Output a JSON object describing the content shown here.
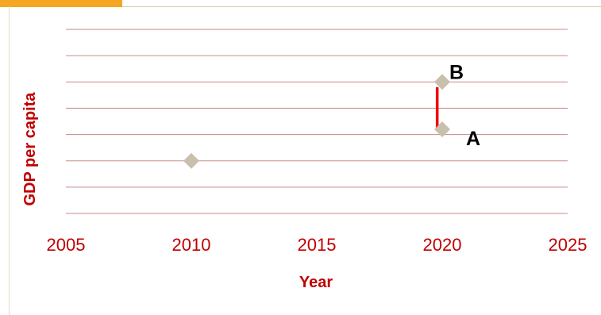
{
  "chart_data": {
    "type": "scatter",
    "title": "",
    "xlabel": "Year",
    "ylabel": "GDP per capita",
    "xlim": [
      2005,
      2025
    ],
    "x_ticks": [
      "2005",
      "2010",
      "2015",
      "2020",
      "2025"
    ],
    "ylim": [
      0,
      7
    ],
    "y_tick_labels_shown": false,
    "grid": "horizontal",
    "series": [
      {
        "points": [
          {
            "x": 2010,
            "y": 2,
            "label": ""
          },
          {
            "x": 2020,
            "y": 5,
            "label": "B"
          },
          {
            "x": 2020,
            "y": 3.2,
            "label": "A"
          }
        ]
      }
    ],
    "annotations": [
      {
        "type": "vertical-bar",
        "x": 2019.8,
        "y_from": 3.2,
        "y_to": 4.8
      }
    ],
    "colors": {
      "grid": "#c98a8a",
      "marker": "#c8c0ac",
      "axis_text": "#c00000",
      "highlight": "#ee0000",
      "accent_tab": "#f5a623"
    }
  }
}
